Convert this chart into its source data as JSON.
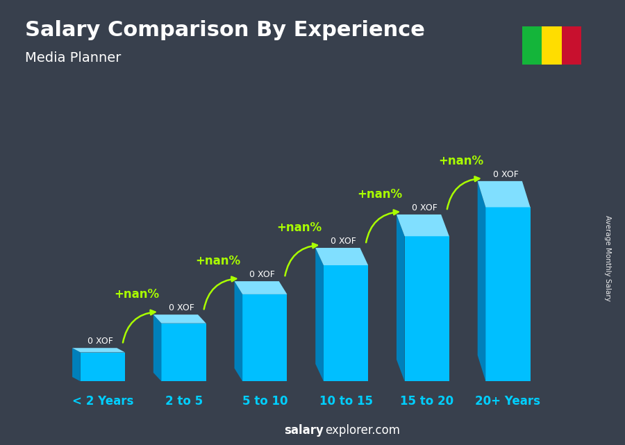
{
  "title": "Salary Comparison By Experience",
  "subtitle": "Media Planner",
  "categories": [
    "< 2 Years",
    "2 to 5",
    "5 to 10",
    "10 to 15",
    "15 to 20",
    "20+ Years"
  ],
  "values": [
    1,
    2,
    3,
    4,
    5,
    6
  ],
  "bar_color_main": "#00bfff",
  "bar_color_left": "#0080bb",
  "bar_color_top": "#80dfff",
  "labels": [
    "0 XOF",
    "0 XOF",
    "0 XOF",
    "0 XOF",
    "0 XOF",
    "0 XOF"
  ],
  "pct_labels": [
    "+nan%",
    "+nan%",
    "+nan%",
    "+nan%",
    "+nan%"
  ],
  "title_color": "#ffffff",
  "subtitle_color": "#ffffff",
  "label_color": "#ffffff",
  "pct_color": "#aaff00",
  "xlabel_color": "#00cfff",
  "watermark_bold": "salary",
  "watermark_rest": "explorer.com",
  "ylabel_text": "Average Monthly Salary",
  "flag_colors": [
    "#14b53a",
    "#ffdd00",
    "#c8102e"
  ],
  "bar_width": 0.55,
  "figsize": [
    9.0,
    6.41
  ]
}
